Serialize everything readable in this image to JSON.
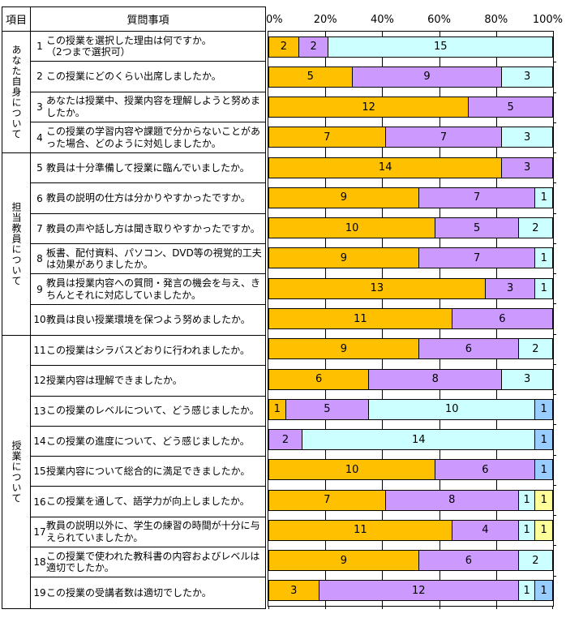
{
  "table": {
    "header": {
      "category": "項目",
      "question": "質問事項"
    },
    "groups": [
      {
        "label": "あなた自身について",
        "questions": [
          {
            "no": "1",
            "text": "この授業を選択した理由は何ですか。\n（2つまで選択可）"
          },
          {
            "no": "2",
            "text": "この授業にどのくらい出席しましたか。"
          },
          {
            "no": "3",
            "text": "あなたは授業中、授業内容を理解しようと努めましたか。"
          },
          {
            "no": "4",
            "text": "この授業の学習内容や課題で分からないことがあった場合、どのように対処しましたか。"
          }
        ]
      },
      {
        "label": "担当教員について",
        "questions": [
          {
            "no": "5",
            "text": "教員は十分準備して授業に臨んでいましたか。"
          },
          {
            "no": "6",
            "text": "教員の説明の仕方は分かりやすかったですか。"
          },
          {
            "no": "7",
            "text": "教員の声や話し方は聞き取りやすかったですか。"
          },
          {
            "no": "8",
            "text": "板書、配付資料、パソコン、DVD等の視覚的工夫は効果がありましたか。"
          },
          {
            "no": "9",
            "text": "教員は授業内容への質問・発言の機会を与え、きちんとそれに対応していましたか。"
          },
          {
            "no": "10",
            "text": "教員は良い授業環境を保つよう努めましたか。"
          }
        ]
      },
      {
        "label": "授業について",
        "questions": [
          {
            "no": "11",
            "text": "この授業はシラバスどおりに行われましたか。"
          },
          {
            "no": "12",
            "text": "授業内容は理解できましたか。"
          },
          {
            "no": "13",
            "text": "この授業のレベルについて、どう感じましたか。"
          },
          {
            "no": "14",
            "text": "この授業の進度について、どう感じましたか。"
          },
          {
            "no": "15",
            "text": "授業内容について総合的に満足できましたか。"
          },
          {
            "no": "16",
            "text": "この授業を通して、語学力が向上しましたか。"
          },
          {
            "no": "17",
            "text": "教員の説明以外に、学生の練習の時間が十分に与えられていましたか。"
          },
          {
            "no": "18",
            "text": "この授業で使われた教科書の内容およびレベルは適切でしたか。"
          },
          {
            "no": "19",
            "text": "この授業の受講者数は適切でしたか。"
          }
        ]
      }
    ]
  },
  "chart_data": {
    "type": "bar",
    "stacked": true,
    "orientation": "horizontal",
    "title": "",
    "xlabel": "",
    "ylabel": "",
    "xlim": [
      0,
      100
    ],
    "grid": true,
    "legend": "none",
    "axis_ticks": [
      "0%",
      "20%",
      "40%",
      "60%",
      "80%",
      "100%"
    ],
    "colors": {
      "orange": "#FFC000",
      "purple": "#CC99FF",
      "cyan": "#CCFFFF",
      "blue": "#99CCFF",
      "yellow": "#FFFF99"
    },
    "categories": [
      1,
      2,
      3,
      4,
      5,
      6,
      7,
      8,
      9,
      10,
      11,
      12,
      13,
      14,
      15,
      16,
      17,
      18,
      19
    ],
    "rows": [
      {
        "q": 1,
        "segments": [
          {
            "color": "orange",
            "value": 2
          },
          {
            "color": "purple",
            "value": 2
          },
          {
            "color": "cyan",
            "value": 15
          }
        ]
      },
      {
        "q": 2,
        "segments": [
          {
            "color": "orange",
            "value": 5
          },
          {
            "color": "purple",
            "value": 9
          },
          {
            "color": "cyan",
            "value": 3
          }
        ]
      },
      {
        "q": 3,
        "segments": [
          {
            "color": "orange",
            "value": 12
          },
          {
            "color": "purple",
            "value": 5
          }
        ]
      },
      {
        "q": 4,
        "segments": [
          {
            "color": "orange",
            "value": 7
          },
          {
            "color": "purple",
            "value": 7
          },
          {
            "color": "cyan",
            "value": 3
          }
        ]
      },
      {
        "q": 5,
        "segments": [
          {
            "color": "orange",
            "value": 14
          },
          {
            "color": "purple",
            "value": 3
          }
        ]
      },
      {
        "q": 6,
        "segments": [
          {
            "color": "orange",
            "value": 9
          },
          {
            "color": "purple",
            "value": 7
          },
          {
            "color": "cyan",
            "value": 1
          }
        ]
      },
      {
        "q": 7,
        "segments": [
          {
            "color": "orange",
            "value": 10
          },
          {
            "color": "purple",
            "value": 5
          },
          {
            "color": "cyan",
            "value": 2
          }
        ]
      },
      {
        "q": 8,
        "segments": [
          {
            "color": "orange",
            "value": 9
          },
          {
            "color": "purple",
            "value": 7
          },
          {
            "color": "cyan",
            "value": 1
          }
        ]
      },
      {
        "q": 9,
        "segments": [
          {
            "color": "orange",
            "value": 13
          },
          {
            "color": "purple",
            "value": 3
          },
          {
            "color": "cyan",
            "value": 1
          }
        ]
      },
      {
        "q": 10,
        "segments": [
          {
            "color": "orange",
            "value": 11
          },
          {
            "color": "purple",
            "value": 6
          }
        ]
      },
      {
        "q": 11,
        "segments": [
          {
            "color": "orange",
            "value": 9
          },
          {
            "color": "purple",
            "value": 6
          },
          {
            "color": "cyan",
            "value": 2
          }
        ]
      },
      {
        "q": 12,
        "segments": [
          {
            "color": "orange",
            "value": 6
          },
          {
            "color": "purple",
            "value": 8
          },
          {
            "color": "cyan",
            "value": 3
          }
        ]
      },
      {
        "q": 13,
        "segments": [
          {
            "color": "orange",
            "value": 1
          },
          {
            "color": "purple",
            "value": 5
          },
          {
            "color": "cyan",
            "value": 10
          },
          {
            "color": "blue",
            "value": 1
          }
        ]
      },
      {
        "q": 14,
        "segments": [
          {
            "color": "purple",
            "value": 2
          },
          {
            "color": "cyan",
            "value": 14
          },
          {
            "color": "blue",
            "value": 1
          }
        ]
      },
      {
        "q": 15,
        "segments": [
          {
            "color": "orange",
            "value": 10
          },
          {
            "color": "purple",
            "value": 6
          },
          {
            "color": "blue",
            "value": 1
          }
        ]
      },
      {
        "q": 16,
        "segments": [
          {
            "color": "orange",
            "value": 7
          },
          {
            "color": "purple",
            "value": 8
          },
          {
            "color": "cyan",
            "value": 1
          },
          {
            "color": "yellow",
            "value": 1
          }
        ]
      },
      {
        "q": 17,
        "segments": [
          {
            "color": "orange",
            "value": 11
          },
          {
            "color": "purple",
            "value": 4
          },
          {
            "color": "cyan",
            "value": 1
          },
          {
            "color": "yellow",
            "value": 1
          }
        ]
      },
      {
        "q": 18,
        "segments": [
          {
            "color": "orange",
            "value": 9
          },
          {
            "color": "purple",
            "value": 6
          },
          {
            "color": "cyan",
            "value": 2
          }
        ]
      },
      {
        "q": 19,
        "segments": [
          {
            "color": "orange",
            "value": 3
          },
          {
            "color": "purple",
            "value": 12
          },
          {
            "color": "cyan",
            "value": 1
          },
          {
            "color": "blue",
            "value": 1
          }
        ]
      }
    ]
  }
}
